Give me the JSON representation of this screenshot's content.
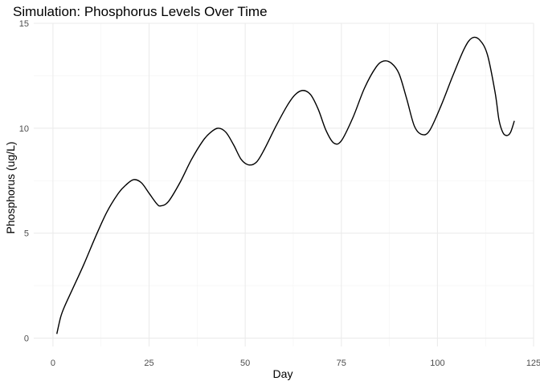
{
  "chart_data": {
    "type": "line",
    "title": "Simulation: Phosphorus Levels Over Time",
    "xlabel": "Day",
    "ylabel": "Phosphorus (ug/L)",
    "xlim": [
      -5,
      125
    ],
    "ylim": [
      -0.4,
      15
    ],
    "x_ticks": [
      0,
      25,
      50,
      75,
      100,
      125
    ],
    "y_ticks": [
      0,
      5,
      10,
      15
    ],
    "x_minor_ticks": [
      12.5,
      37.5,
      62.5,
      87.5,
      112.5
    ],
    "y_minor_ticks": [
      2.5,
      7.5,
      12.5
    ],
    "grid": true,
    "series": [
      {
        "name": "Phosphorus",
        "color": "#000000",
        "x": [
          1,
          2,
          3,
          5,
          8,
          11,
          14,
          17,
          19,
          21,
          23,
          25,
          27,
          28,
          30,
          33,
          36,
          39,
          41,
          43,
          45,
          47,
          49,
          51,
          53,
          55,
          58,
          61,
          63,
          65,
          67,
          69,
          71,
          73,
          75,
          78,
          81,
          84,
          86,
          88,
          90,
          92,
          94,
          96,
          98,
          101,
          104,
          107,
          109,
          111,
          113,
          115,
          116,
          117,
          118,
          119,
          120
        ],
        "y": [
          0.2,
          1.0,
          1.5,
          2.3,
          3.5,
          4.8,
          6.0,
          6.9,
          7.3,
          7.55,
          7.4,
          6.9,
          6.4,
          6.3,
          6.5,
          7.4,
          8.5,
          9.4,
          9.8,
          10.0,
          9.8,
          9.2,
          8.5,
          8.25,
          8.4,
          9.0,
          10.1,
          11.1,
          11.6,
          11.8,
          11.6,
          10.9,
          9.9,
          9.3,
          9.4,
          10.5,
          11.9,
          12.9,
          13.2,
          13.1,
          12.6,
          11.4,
          10.1,
          9.7,
          9.9,
          11.1,
          12.5,
          13.8,
          14.3,
          14.2,
          13.5,
          11.7,
          10.4,
          9.8,
          9.65,
          9.8,
          10.35
        ]
      }
    ]
  }
}
